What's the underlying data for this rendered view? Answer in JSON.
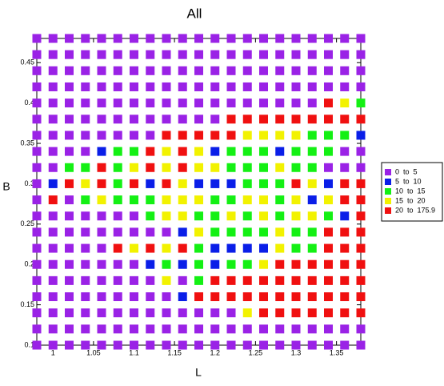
{
  "chart_data": {
    "type": "heatmap",
    "title": "All",
    "x_label": "L",
    "y_label": "B",
    "x": [
      0.98,
      1.0,
      1.02,
      1.04,
      1.06,
      1.08,
      1.1,
      1.12,
      1.14,
      1.16,
      1.18,
      1.2,
      1.22,
      1.24,
      1.26,
      1.28,
      1.3,
      1.32,
      1.34,
      1.36,
      1.38
    ],
    "y": [
      0.48,
      0.46,
      0.44,
      0.42,
      0.4,
      0.38,
      0.36,
      0.34,
      0.32,
      0.3,
      0.28,
      0.26,
      0.24,
      0.22,
      0.2,
      0.18,
      0.16,
      0.14,
      0.12,
      0.1
    ],
    "values": [
      [
        2,
        2,
        2,
        2,
        2,
        2,
        2,
        2,
        2,
        2,
        2,
        2,
        2,
        2,
        2,
        2,
        2,
        2,
        2,
        2,
        2
      ],
      [
        2,
        2,
        2,
        2,
        2,
        2,
        2,
        2,
        2,
        2,
        2,
        2,
        2,
        2,
        2,
        2,
        2,
        2,
        2,
        2,
        2
      ],
      [
        2,
        2,
        2,
        2,
        2,
        2,
        2,
        2,
        2,
        2,
        2,
        2,
        2,
        2,
        2,
        2,
        2,
        2,
        2,
        2,
        2
      ],
      [
        2,
        2,
        2,
        2,
        2,
        2,
        2,
        2,
        2,
        2,
        2,
        2,
        2,
        2,
        2,
        2,
        2,
        2,
        2,
        2,
        2
      ],
      [
        2,
        2,
        2,
        2,
        2,
        2,
        2,
        2,
        2,
        2,
        2,
        2,
        2,
        2,
        2,
        2,
        2,
        2,
        30,
        17,
        12
      ],
      [
        2,
        2,
        2,
        2,
        2,
        2,
        2,
        2,
        2,
        2,
        2,
        2,
        30,
        30,
        30,
        30,
        30,
        30,
        30,
        30,
        30
      ],
      [
        2,
        2,
        2,
        2,
        2,
        2,
        2,
        2,
        30,
        30,
        30,
        30,
        30,
        17,
        17,
        17,
        17,
        12,
        12,
        12,
        7
      ],
      [
        2,
        2,
        2,
        2,
        7,
        12,
        12,
        30,
        17,
        30,
        17,
        7,
        12,
        12,
        12,
        7,
        12,
        12,
        12,
        2,
        2
      ],
      [
        2,
        2,
        12,
        12,
        30,
        12,
        17,
        30,
        17,
        30,
        17,
        17,
        12,
        12,
        12,
        17,
        12,
        12,
        2,
        2,
        2
      ],
      [
        2,
        7,
        30,
        17,
        30,
        12,
        30,
        7,
        30,
        17,
        7,
        7,
        7,
        12,
        12,
        12,
        30,
        17,
        7,
        30,
        30
      ],
      [
        2,
        30,
        2,
        12,
        17,
        12,
        12,
        12,
        17,
        17,
        17,
        12,
        12,
        17,
        17,
        12,
        17,
        7,
        17,
        30,
        30
      ],
      [
        2,
        2,
        2,
        2,
        2,
        2,
        2,
        12,
        17,
        17,
        12,
        12,
        17,
        12,
        17,
        12,
        17,
        17,
        12,
        7,
        30
      ],
      [
        2,
        2,
        2,
        2,
        2,
        2,
        2,
        2,
        2,
        7,
        17,
        12,
        12,
        12,
        12,
        17,
        12,
        12,
        30,
        30,
        30
      ],
      [
        2,
        2,
        2,
        2,
        2,
        30,
        17,
        30,
        17,
        30,
        12,
        7,
        7,
        7,
        7,
        17,
        12,
        12,
        30,
        30,
        30
      ],
      [
        2,
        2,
        2,
        2,
        2,
        2,
        2,
        7,
        12,
        7,
        12,
        7,
        12,
        12,
        17,
        30,
        30,
        30,
        30,
        30,
        30
      ],
      [
        2,
        2,
        2,
        2,
        2,
        2,
        2,
        2,
        17,
        2,
        12,
        30,
        30,
        30,
        30,
        30,
        30,
        30,
        30,
        30,
        30
      ],
      [
        2,
        2,
        2,
        2,
        2,
        2,
        2,
        2,
        2,
        7,
        30,
        30,
        30,
        30,
        30,
        30,
        30,
        30,
        30,
        30,
        30
      ],
      [
        2,
        2,
        2,
        2,
        2,
        2,
        2,
        2,
        2,
        2,
        2,
        2,
        2,
        17,
        30,
        30,
        30,
        30,
        30,
        30,
        30
      ],
      [
        2,
        2,
        2,
        2,
        2,
        2,
        2,
        2,
        2,
        2,
        2,
        2,
        2,
        2,
        2,
        2,
        2,
        2,
        2,
        2,
        2
      ],
      [
        2,
        2,
        2,
        2,
        2,
        2,
        2,
        2,
        2,
        2,
        2,
        2,
        2,
        2,
        2,
        2,
        2,
        2,
        2,
        2,
        2
      ]
    ],
    "bins": [
      0,
      5,
      10,
      15,
      20,
      175.9
    ],
    "series": [
      {
        "name": "0  to  5",
        "color": "#9a22e6"
      },
      {
        "name": "5  to  10",
        "color": "#0a1ee8"
      },
      {
        "name": "10  to  15",
        "color": "#14f014"
      },
      {
        "name": "15  to  20",
        "color": "#f2f200"
      },
      {
        "name": "20  to  175.9",
        "color": "#f01010"
      }
    ],
    "xlim": [
      0.98,
      1.38
    ],
    "ylim": [
      0.1,
      0.48
    ],
    "xticks": [
      1,
      1.05,
      1.1,
      1.15,
      1.2,
      1.25,
      1.3,
      1.35
    ],
    "yticks": [
      0.1,
      0.15,
      0.2,
      0.25,
      0.3,
      0.35,
      0.4,
      0.45
    ]
  }
}
